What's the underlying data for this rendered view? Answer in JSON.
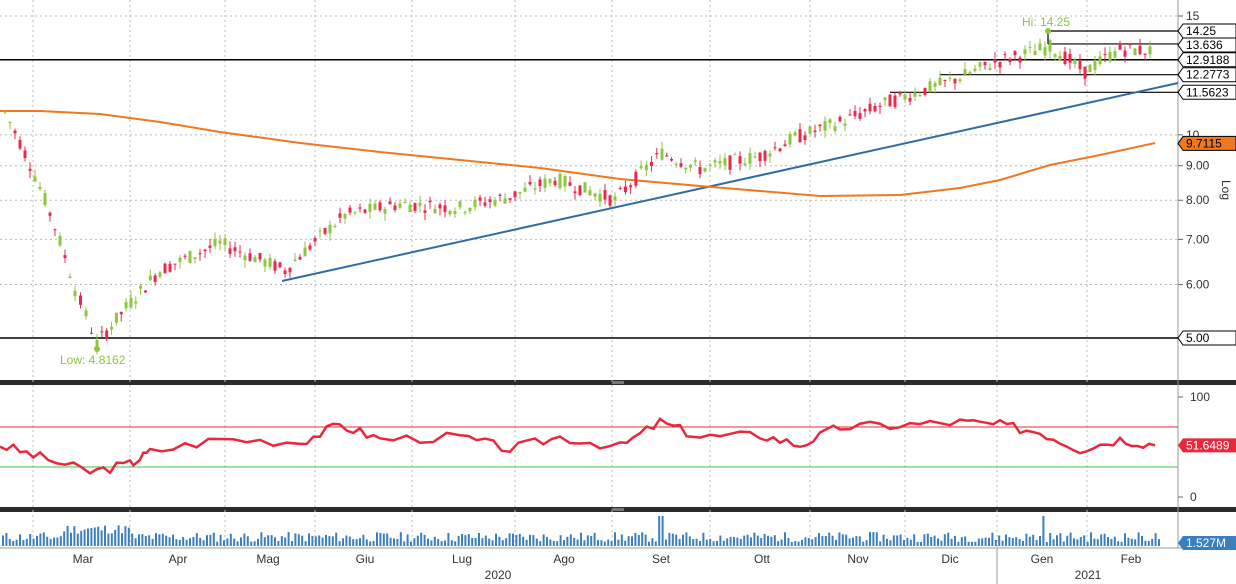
{
  "chart_data": {
    "type": "candlestick",
    "price_panel": {
      "scale": "log",
      "ylabel": "Log",
      "y_ticks": [
        "15",
        "10",
        "9.00",
        "8.00",
        "7.00",
        "6.00",
        "5.00"
      ],
      "hi_label": "Hi: 14.25",
      "low_label": "Low: 4.8162",
      "price_levels": [
        {
          "label": "14.25",
          "value": 14.25,
          "color": "#ffffff",
          "text_color": "#000000"
        },
        {
          "label": "13.636",
          "value": 13.636,
          "color": "#ffffff",
          "text_color": "#000000"
        },
        {
          "label": "12.9188",
          "value": 12.9188,
          "color": "#ffffff",
          "text_color": "#000000"
        },
        {
          "label": "12.2773",
          "value": 12.2773,
          "color": "#ffffff",
          "text_color": "#000000"
        },
        {
          "label": "11.5623",
          "value": 11.5623,
          "color": "#ffffff",
          "text_color": "#000000"
        },
        {
          "label": "9.7115",
          "value": 9.7115,
          "color": "#f07820",
          "text_color": "#000000"
        },
        {
          "label": "5.00",
          "value": 5.0,
          "color": "#ffffff",
          "text_color": "#000000"
        }
      ],
      "close_series": {
        "name": "Close",
        "points": [
          {
            "x": "Feb 2020",
            "y": 10.8
          },
          {
            "x": "Mar 2020",
            "y": 5.9
          },
          {
            "x": "Mar 2020",
            "y": 4.9
          },
          {
            "x": "Apr 2020",
            "y": 6.3
          },
          {
            "x": "Apr 2020",
            "y": 6.9
          },
          {
            "x": "May 2020",
            "y": 6.3
          },
          {
            "x": "Jun 2020",
            "y": 7.6
          },
          {
            "x": "Jun 2020",
            "y": 7.9
          },
          {
            "x": "Jul 2020",
            "y": 7.8
          },
          {
            "x": "Jul 2020",
            "y": 8.1
          },
          {
            "x": "Aug 2020",
            "y": 8.6
          },
          {
            "x": "Aug 2020",
            "y": 8.0
          },
          {
            "x": "Sep 2020",
            "y": 9.4
          },
          {
            "x": "Sep 2020",
            "y": 8.9
          },
          {
            "x": "Oct 2020",
            "y": 9.3
          },
          {
            "x": "Oct 2020",
            "y": 9.9
          },
          {
            "x": "Nov 2020",
            "y": 10.5
          },
          {
            "x": "Nov 2020",
            "y": 11.2
          },
          {
            "x": "Dec 2020",
            "y": 12.0
          },
          {
            "x": "Dec 2020",
            "y": 12.8
          },
          {
            "x": "Jan 2021",
            "y": 13.5
          },
          {
            "x": "Jan 2021",
            "y": 12.4
          },
          {
            "x": "Feb 2021",
            "y": 13.4
          },
          {
            "x": "Feb 2021",
            "y": 13.3
          }
        ]
      },
      "moving_average": {
        "color": "#f07820",
        "last": 9.7115
      },
      "trendline": {
        "color": "#2e6da4"
      }
    },
    "rsi_panel": {
      "y_ticks": [
        "100",
        "0"
      ],
      "upper": 70,
      "lower": 30,
      "last_label": "51.6489",
      "color": "#e8283c"
    },
    "volume_panel": {
      "last_label": "1.527M",
      "color": "#3a7fc0"
    },
    "x_months": [
      "Mar",
      "Apr",
      "Mag",
      "Giu",
      "Lug",
      "Ago",
      "Set",
      "Ott",
      "Nov",
      "Dic",
      "Gen",
      "Feb"
    ],
    "x_years": [
      "2020",
      "2021"
    ]
  }
}
